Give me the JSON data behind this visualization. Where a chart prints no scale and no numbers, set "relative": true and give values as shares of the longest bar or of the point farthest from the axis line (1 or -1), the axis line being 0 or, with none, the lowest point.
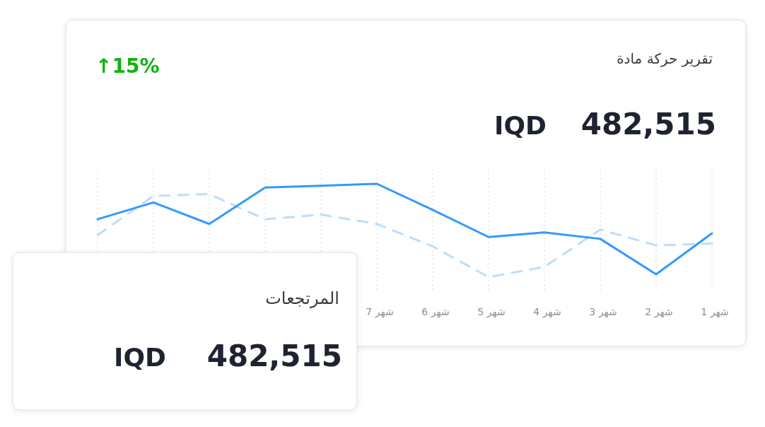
{
  "chart_data": [
    {
      "type": "line",
      "title": "تقرير حركة مادة",
      "annotations": [
        "↑15%",
        "482,515",
        "IQD"
      ],
      "relative": true,
      "grid": "x",
      "marker": "none",
      "tick_labels": "x",
      "categories": [
        null,
        null,
        null,
        null,
        null,
        "شهر 7",
        "شهر 6",
        "شهر 5",
        "شهر 4",
        "شهر 3",
        "شهر 2",
        "شهر 1"
      ],
      "series": [
        {
          "color": "#bfdcfb",
          "line_style": "dashed",
          "values": [
            0.45,
            0.87,
            0.89,
            0.62,
            0.67,
            0.57,
            0.33,
            0,
            0.11,
            0.51,
            0.34,
            0.36
          ]
        },
        {
          "color": "#3399ff",
          "line_style": "solid",
          "values": [
            0.62,
            0.8,
            0.57,
            0.96,
            0.98,
            1,
            0.72,
            0.43,
            0.48,
            0.41,
            0.03,
            0.47
          ]
        }
      ]
    },
    {
      "type": "other",
      "title": "المرتجعات",
      "annotations": [
        "482,515",
        "IQD"
      ]
    }
  ]
}
